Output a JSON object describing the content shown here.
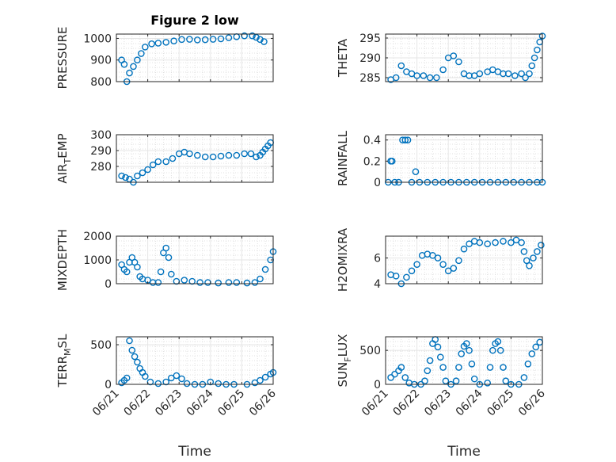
{
  "figure": {
    "title": "Figure 2 low",
    "xlabel": "Time",
    "date_ticks": [
      "06/21",
      "06/22",
      "06/23",
      "06/24",
      "06/25",
      "06/26"
    ],
    "marker_color": "#0072BD",
    "grid_color": "#e6e6e6"
  },
  "chart_data": [
    {
      "type": "scatter",
      "ylabel": "PRESSURE",
      "ylim": [
        800,
        1020
      ],
      "yticks": [
        800,
        900,
        1000
      ],
      "grid": true,
      "points": [
        [
          "06/21 04:00",
          900
        ],
        [
          "06/21 06:00",
          880
        ],
        [
          "06/21 08:00",
          800
        ],
        [
          "06/21 10:00",
          840
        ],
        [
          "06/21 13:00",
          870
        ],
        [
          "06/21 16:00",
          900
        ],
        [
          "06/21 19:00",
          930
        ],
        [
          "06/21 22:00",
          960
        ],
        [
          "06/22 03:00",
          975
        ],
        [
          "06/22 08:00",
          978
        ],
        [
          "06/22 14:00",
          982
        ],
        [
          "06/22 20:00",
          988
        ],
        [
          "06/23 02:00",
          995
        ],
        [
          "06/23 08:00",
          996
        ],
        [
          "06/23 14:00",
          993
        ],
        [
          "06/23 20:00",
          994
        ],
        [
          "06/24 02:00",
          996
        ],
        [
          "06/24 08:00",
          998
        ],
        [
          "06/24 14:00",
          1003
        ],
        [
          "06/24 20:00",
          1008
        ],
        [
          "06/25 02:00",
          1012
        ],
        [
          "06/25 08:00",
          1012
        ],
        [
          "06/25 11:00",
          1005
        ],
        [
          "06/25 14:00",
          995
        ],
        [
          "06/25 17:00",
          985
        ]
      ]
    },
    {
      "type": "scatter",
      "ylabel": "THETA",
      "ylim": [
        284,
        296
      ],
      "yticks": [
        285,
        290,
        295
      ],
      "grid": true,
      "points": [
        [
          "06/21 04:00",
          284.5
        ],
        [
          "06/21 08:00",
          285
        ],
        [
          "06/21 12:00",
          288
        ],
        [
          "06/21 16:00",
          286.5
        ],
        [
          "06/21 20:00",
          286
        ],
        [
          "06/22 00:00",
          285.5
        ],
        [
          "06/22 05:00",
          285.5
        ],
        [
          "06/22 10:00",
          285
        ],
        [
          "06/22 15:00",
          285
        ],
        [
          "06/22 20:00",
          287
        ],
        [
          "06/23 00:00",
          290
        ],
        [
          "06/23 04:00",
          290.5
        ],
        [
          "06/23 08:00",
          289
        ],
        [
          "06/23 12:00",
          286
        ],
        [
          "06/23 16:00",
          285.5
        ],
        [
          "06/23 20:00",
          285.5
        ],
        [
          "06/24 00:00",
          286
        ],
        [
          "06/24 06:00",
          286.5
        ],
        [
          "06/24 10:00",
          287
        ],
        [
          "06/24 14:00",
          286.5
        ],
        [
          "06/24 18:00",
          286
        ],
        [
          "06/24 22:00",
          286
        ],
        [
          "06/25 03:00",
          285.5
        ],
        [
          "06/25 08:00",
          286
        ],
        [
          "06/25 11:00",
          285
        ],
        [
          "06/25 14:00",
          286
        ],
        [
          "06/25 16:00",
          288
        ],
        [
          "06/25 18:00",
          290
        ],
        [
          "06/25 20:00",
          292
        ],
        [
          "06/25 22:00",
          294
        ],
        [
          "06/26 00:00",
          295.5
        ]
      ]
    },
    {
      "type": "scatter",
      "ylabel": "AIR",
      "ylabel_sub": "T",
      "ylabel_rest": "EMP",
      "ylim": [
        270,
        300
      ],
      "yticks": [
        280,
        290,
        300
      ],
      "grid": true,
      "points": [
        [
          "06/21 04:00",
          274
        ],
        [
          "06/21 07:00",
          273
        ],
        [
          "06/21 10:00",
          272
        ],
        [
          "06/21 13:00",
          270
        ],
        [
          "06/21 16:00",
          274
        ],
        [
          "06/21 20:00",
          276
        ],
        [
          "06/22 00:00",
          278
        ],
        [
          "06/22 04:00",
          281
        ],
        [
          "06/22 08:00",
          283
        ],
        [
          "06/22 14:00",
          283
        ],
        [
          "06/22 19:00",
          285
        ],
        [
          "06/23 00:00",
          288
        ],
        [
          "06/23 04:00",
          289
        ],
        [
          "06/23 08:00",
          288
        ],
        [
          "06/23 14:00",
          287
        ],
        [
          "06/23 20:00",
          286
        ],
        [
          "06/24 02:00",
          286
        ],
        [
          "06/24 08:00",
          286.5
        ],
        [
          "06/24 14:00",
          287
        ],
        [
          "06/24 20:00",
          287
        ],
        [
          "06/25 02:00",
          288
        ],
        [
          "06/25 07:00",
          288
        ],
        [
          "06/25 11:00",
          286
        ],
        [
          "06/25 14:00",
          287
        ],
        [
          "06/25 16:00",
          289
        ],
        [
          "06/25 18:00",
          291
        ],
        [
          "06/25 20:00",
          293
        ],
        [
          "06/25 22:00",
          295
        ]
      ]
    },
    {
      "type": "scatter",
      "ylabel": "RAINFALL",
      "ylim": [
        0,
        0.45
      ],
      "yticks": [
        0,
        0.2,
        0.4
      ],
      "grid": true,
      "points": [
        [
          "06/21 02:00",
          0
        ],
        [
          "06/21 04:00",
          0.2
        ],
        [
          "06/21 05:00",
          0.2
        ],
        [
          "06/21 07:00",
          0
        ],
        [
          "06/21 10:00",
          0
        ],
        [
          "06/21 13:00",
          0.4
        ],
        [
          "06/21 15:00",
          0.4
        ],
        [
          "06/21 17:00",
          0.4
        ],
        [
          "06/21 20:00",
          0
        ],
        [
          "06/21 23:00",
          0.1
        ],
        [
          "06/22 02:00",
          0
        ],
        [
          "06/22 08:00",
          0
        ],
        [
          "06/22 14:00",
          0
        ],
        [
          "06/22 20:00",
          0
        ],
        [
          "06/23 02:00",
          0
        ],
        [
          "06/23 08:00",
          0
        ],
        [
          "06/23 14:00",
          0
        ],
        [
          "06/23 20:00",
          0
        ],
        [
          "06/24 02:00",
          0
        ],
        [
          "06/24 08:00",
          0
        ],
        [
          "06/24 14:00",
          0
        ],
        [
          "06/24 20:00",
          0
        ],
        [
          "06/25 02:00",
          0
        ],
        [
          "06/25 08:00",
          0
        ],
        [
          "06/25 14:00",
          0
        ],
        [
          "06/25 20:00",
          0
        ],
        [
          "06/26 00:00",
          0
        ]
      ]
    },
    {
      "type": "scatter",
      "ylabel": "MIXDEPTH",
      "ylim": [
        0,
        2000
      ],
      "yticks": [
        0,
        1000,
        2000
      ],
      "grid": true,
      "points": [
        [
          "06/21 04:00",
          800
        ],
        [
          "06/21 06:00",
          600
        ],
        [
          "06/21 08:00",
          500
        ],
        [
          "06/21 10:00",
          900
        ],
        [
          "06/21 12:00",
          1100
        ],
        [
          "06/21 14:00",
          900
        ],
        [
          "06/21 16:00",
          700
        ],
        [
          "06/21 18:00",
          300
        ],
        [
          "06/21 20:00",
          200
        ],
        [
          "06/22 00:00",
          150
        ],
        [
          "06/22 04:00",
          50
        ],
        [
          "06/22 08:00",
          50
        ],
        [
          "06/22 10:00",
          500
        ],
        [
          "06/22 12:00",
          1300
        ],
        [
          "06/22 14:00",
          1500
        ],
        [
          "06/22 16:00",
          1100
        ],
        [
          "06/22 18:00",
          400
        ],
        [
          "06/22 22:00",
          100
        ],
        [
          "06/23 04:00",
          150
        ],
        [
          "06/23 10:00",
          100
        ],
        [
          "06/23 16:00",
          50
        ],
        [
          "06/23 22:00",
          50
        ],
        [
          "06/24 06:00",
          30
        ],
        [
          "06/24 14:00",
          50
        ],
        [
          "06/24 20:00",
          50
        ],
        [
          "06/25 04:00",
          30
        ],
        [
          "06/25 10:00",
          50
        ],
        [
          "06/25 14:00",
          200
        ],
        [
          "06/25 18:00",
          600
        ],
        [
          "06/25 22:00",
          1000
        ],
        [
          "06/26 00:00",
          1350
        ]
      ]
    },
    {
      "type": "scatter",
      "ylabel": "H2OMIXRA",
      "ylim": [
        4,
        7.7
      ],
      "yticks": [
        4,
        6
      ],
      "grid": true,
      "points": [
        [
          "06/21 04:00",
          4.7
        ],
        [
          "06/21 08:00",
          4.6
        ],
        [
          "06/21 12:00",
          4.0
        ],
        [
          "06/21 16:00",
          4.5
        ],
        [
          "06/21 20:00",
          5.0
        ],
        [
          "06/22 00:00",
          5.5
        ],
        [
          "06/22 04:00",
          6.2
        ],
        [
          "06/22 08:00",
          6.3
        ],
        [
          "06/22 12:00",
          6.2
        ],
        [
          "06/22 16:00",
          6.0
        ],
        [
          "06/22 20:00",
          5.5
        ],
        [
          "06/23 00:00",
          5.0
        ],
        [
          "06/23 04:00",
          5.2
        ],
        [
          "06/23 08:00",
          5.8
        ],
        [
          "06/23 12:00",
          6.7
        ],
        [
          "06/23 16:00",
          7.1
        ],
        [
          "06/23 20:00",
          7.3
        ],
        [
          "06/24 00:00",
          7.2
        ],
        [
          "06/24 06:00",
          7.1
        ],
        [
          "06/24 12:00",
          7.2
        ],
        [
          "06/24 18:00",
          7.3
        ],
        [
          "06/25 00:00",
          7.2
        ],
        [
          "06/25 04:00",
          7.4
        ],
        [
          "06/25 08:00",
          7.2
        ],
        [
          "06/25 10:00",
          6.5
        ],
        [
          "06/25 12:00",
          5.8
        ],
        [
          "06/25 14:00",
          5.4
        ],
        [
          "06/25 17:00",
          6.0
        ],
        [
          "06/25 20:00",
          6.5
        ],
        [
          "06/25 23:00",
          7.0
        ]
      ]
    },
    {
      "type": "scatter",
      "ylabel": "TERR",
      "ylabel_sub": "M",
      "ylabel_rest": "SL",
      "ylim": [
        0,
        600
      ],
      "yticks": [
        0,
        500
      ],
      "grid": true,
      "points": [
        [
          "06/21 04:00",
          20
        ],
        [
          "06/21 06:00",
          50
        ],
        [
          "06/21 08:00",
          80
        ],
        [
          "06/21 10:00",
          550
        ],
        [
          "06/21 12:00",
          430
        ],
        [
          "06/21 14:00",
          350
        ],
        [
          "06/21 16:00",
          280
        ],
        [
          "06/21 18:00",
          200
        ],
        [
          "06/21 20:00",
          150
        ],
        [
          "06/21 22:00",
          100
        ],
        [
          "06/22 02:00",
          30
        ],
        [
          "06/22 08:00",
          10
        ],
        [
          "06/22 14:00",
          30
        ],
        [
          "06/22 18:00",
          80
        ],
        [
          "06/22 22:00",
          110
        ],
        [
          "06/23 02:00",
          70
        ],
        [
          "06/23 06:00",
          10
        ],
        [
          "06/23 12:00",
          0
        ],
        [
          "06/23 18:00",
          0
        ],
        [
          "06/24 00:00",
          30
        ],
        [
          "06/24 06:00",
          10
        ],
        [
          "06/24 12:00",
          0
        ],
        [
          "06/24 18:00",
          0
        ],
        [
          "06/25 04:00",
          0
        ],
        [
          "06/25 10:00",
          20
        ],
        [
          "06/25 14:00",
          50
        ],
        [
          "06/25 18:00",
          90
        ],
        [
          "06/25 22:00",
          130
        ],
        [
          "06/26 00:00",
          150
        ]
      ]
    },
    {
      "type": "scatter",
      "ylabel": "SUN",
      "ylabel_sub": "F",
      "ylabel_rest": "LUX",
      "ylim": [
        0,
        700
      ],
      "yticks": [
        0,
        500
      ],
      "grid": true,
      "points": [
        [
          "06/21 04:00",
          100
        ],
        [
          "06/21 07:00",
          150
        ],
        [
          "06/21 10:00",
          200
        ],
        [
          "06/21 12:00",
          250
        ],
        [
          "06/21 15:00",
          100
        ],
        [
          "06/21 18:00",
          20
        ],
        [
          "06/21 22:00",
          0
        ],
        [
          "06/22 03:00",
          0
        ],
        [
          "06/22 06:00",
          50
        ],
        [
          "06/22 08:00",
          200
        ],
        [
          "06/22 10:00",
          350
        ],
        [
          "06/22 12:00",
          600
        ],
        [
          "06/22 14:00",
          660
        ],
        [
          "06/22 16:00",
          550
        ],
        [
          "06/22 18:00",
          400
        ],
        [
          "06/22 20:00",
          250
        ],
        [
          "06/22 22:00",
          50
        ],
        [
          "06/23 02:00",
          0
        ],
        [
          "06/23 06:00",
          50
        ],
        [
          "06/23 08:00",
          250
        ],
        [
          "06/23 10:00",
          450
        ],
        [
          "06/23 12:00",
          560
        ],
        [
          "06/23 14:00",
          600
        ],
        [
          "06/23 16:00",
          500
        ],
        [
          "06/23 18:00",
          300
        ],
        [
          "06/23 20:00",
          80
        ],
        [
          "06/24 00:00",
          0
        ],
        [
          "06/24 06:00",
          20
        ],
        [
          "06/24 08:00",
          250
        ],
        [
          "06/24 10:00",
          500
        ],
        [
          "06/24 12:00",
          600
        ],
        [
          "06/24 14:00",
          630
        ],
        [
          "06/24 16:00",
          500
        ],
        [
          "06/24 18:00",
          250
        ],
        [
          "06/24 20:00",
          50
        ],
        [
          "06/25 00:00",
          0
        ],
        [
          "06/25 06:00",
          0
        ],
        [
          "06/25 10:00",
          100
        ],
        [
          "06/25 13:00",
          300
        ],
        [
          "06/25 16:00",
          450
        ],
        [
          "06/25 19:00",
          550
        ],
        [
          "06/25 22:00",
          620
        ]
      ]
    }
  ]
}
